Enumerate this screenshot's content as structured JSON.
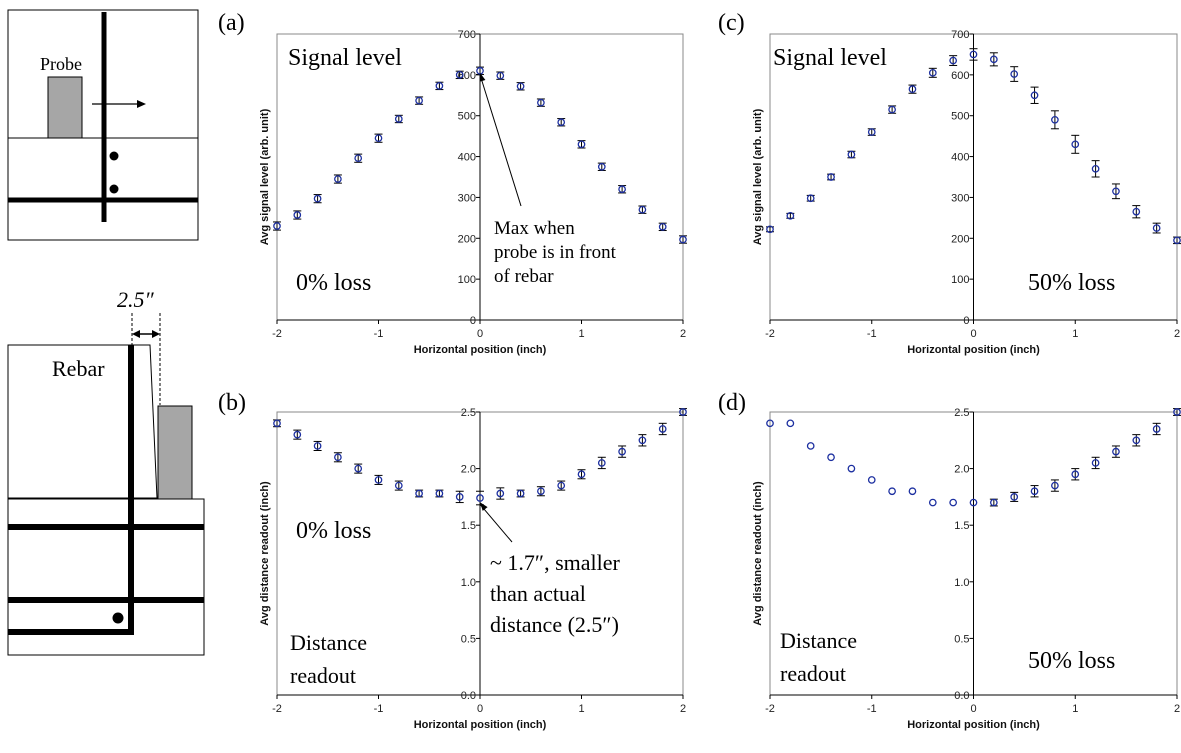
{
  "schematic": {
    "probe_label": "Probe",
    "rebar_label": "Rebar",
    "distance_label": "2.5″"
  },
  "colors": {
    "marker": "#1c2fa0",
    "errorbar": "#000000",
    "axis": "#000000",
    "probe_fill": "#a6a6a6"
  },
  "chart_data": [
    {
      "id": "a",
      "type": "scatter",
      "panel_label": "(a)",
      "xlabel": "Horizontal position (inch)",
      "ylabel": "Avg signal level (arb. unit)",
      "xlim": [
        -2,
        2
      ],
      "ylim": [
        0,
        700
      ],
      "xticks": [
        -2,
        -1,
        0,
        1,
        2
      ],
      "yticks": [
        0,
        100,
        200,
        300,
        400,
        500,
        600,
        700
      ],
      "grid": false,
      "texts": [
        "Signal level",
        "0% loss"
      ],
      "annotation": {
        "lines": [
          "Max when",
          "probe is in front",
          "of rebar"
        ],
        "points_to": [
          0,
          610
        ]
      },
      "x": [
        -2.0,
        -1.8,
        -1.6,
        -1.4,
        -1.2,
        -1.0,
        -0.8,
        -0.6,
        -0.4,
        -0.2,
        0.0,
        0.2,
        0.4,
        0.6,
        0.8,
        1.0,
        1.2,
        1.4,
        1.6,
        1.8,
        2.0
      ],
      "y": [
        230,
        257,
        297,
        345,
        396,
        445,
        492,
        537,
        573,
        600,
        610,
        598,
        572,
        532,
        484,
        430,
        375,
        320,
        270,
        228,
        197
      ],
      "yerr": [
        10,
        10,
        10,
        10,
        10,
        10,
        9,
        9,
        9,
        9,
        9,
        9,
        9,
        9,
        9,
        9,
        9,
        9,
        9,
        9,
        9
      ]
    },
    {
      "id": "b",
      "type": "scatter",
      "panel_label": "(b)",
      "xlabel": "Horizontal position (inch)",
      "ylabel": "Avg distance readout (inch)",
      "xlim": [
        -2,
        2
      ],
      "ylim": [
        0,
        2.5
      ],
      "xticks": [
        -2,
        -1,
        0,
        1,
        2
      ],
      "yticks": [
        "0.0",
        "0.5",
        "1.0",
        "1.5",
        "2.0",
        "2.5"
      ],
      "grid": false,
      "texts": [
        "0% loss",
        "Distance",
        "readout"
      ],
      "annotation": {
        "lines": [
          "~ 1.7″, smaller",
          "than actual",
          "distance (2.5″)"
        ],
        "points_to": [
          0,
          1.72
        ]
      },
      "x": [
        -2.0,
        -1.8,
        -1.6,
        -1.4,
        -1.2,
        -1.0,
        -0.8,
        -0.6,
        -0.4,
        -0.2,
        0.0,
        0.2,
        0.4,
        0.6,
        0.8,
        1.0,
        1.2,
        1.4,
        1.6,
        1.8,
        2.0
      ],
      "y": [
        2.4,
        2.3,
        2.2,
        2.1,
        2.0,
        1.9,
        1.85,
        1.78,
        1.78,
        1.75,
        1.74,
        1.78,
        1.78,
        1.8,
        1.85,
        1.95,
        2.05,
        2.15,
        2.25,
        2.35,
        2.5
      ],
      "yerr": [
        0.03,
        0.04,
        0.04,
        0.04,
        0.04,
        0.04,
        0.04,
        0.03,
        0.03,
        0.05,
        0.06,
        0.05,
        0.03,
        0.04,
        0.04,
        0.04,
        0.05,
        0.05,
        0.05,
        0.05,
        0.03
      ]
    },
    {
      "id": "c",
      "type": "scatter",
      "panel_label": "(c)",
      "xlabel": "Horizontal position (inch)",
      "ylabel": "Avg signal level (arb. unit)",
      "xlim": [
        -2,
        2
      ],
      "ylim": [
        0,
        700
      ],
      "xticks": [
        -2,
        -1,
        0,
        1,
        2
      ],
      "yticks": [
        0,
        100,
        200,
        300,
        400,
        500,
        600,
        700
      ],
      "grid": false,
      "texts": [
        "Signal level",
        "50% loss"
      ],
      "x": [
        -2.0,
        -1.8,
        -1.6,
        -1.4,
        -1.2,
        -1.0,
        -0.8,
        -0.6,
        -0.4,
        -0.2,
        0.0,
        0.2,
        0.4,
        0.6,
        0.8,
        1.0,
        1.2,
        1.4,
        1.6,
        1.8,
        2.0
      ],
      "y": [
        222,
        255,
        298,
        350,
        405,
        460,
        515,
        565,
        605,
        635,
        650,
        638,
        602,
        550,
        490,
        430,
        370,
        315,
        265,
        225,
        195
      ],
      "yerr": [
        6,
        6,
        7,
        7,
        8,
        8,
        9,
        10,
        11,
        12,
        14,
        16,
        18,
        20,
        22,
        22,
        20,
        18,
        15,
        12,
        8
      ]
    },
    {
      "id": "d",
      "type": "scatter",
      "panel_label": "(d)",
      "xlabel": "Horizontal position (inch)",
      "ylabel": "Avg distance readout (inch)",
      "xlim": [
        -2,
        2
      ],
      "ylim": [
        0,
        2.5
      ],
      "xticks": [
        -2,
        -1,
        0,
        1,
        2
      ],
      "yticks": [
        "0.0",
        "0.5",
        "1.0",
        "1.5",
        "2.0",
        "2.5"
      ],
      "grid": false,
      "texts": [
        "Distance",
        "readout",
        "50% loss"
      ],
      "x": [
        -2.0,
        -1.8,
        -1.6,
        -1.4,
        -1.2,
        -1.0,
        -0.8,
        -0.6,
        -0.4,
        -0.2,
        0.0,
        0.2,
        0.4,
        0.6,
        0.8,
        1.0,
        1.2,
        1.4,
        1.6,
        1.8,
        2.0
      ],
      "y": [
        2.4,
        2.4,
        2.2,
        2.1,
        2.0,
        1.9,
        1.8,
        1.8,
        1.7,
        1.7,
        1.7,
        1.7,
        1.75,
        1.8,
        1.85,
        1.95,
        2.05,
        2.15,
        2.25,
        2.35,
        2.5
      ],
      "yerr": [
        0.0,
        0.0,
        0.0,
        0.0,
        0.0,
        0.0,
        0.0,
        0.0,
        0.0,
        0.0,
        0.0,
        0.03,
        0.04,
        0.05,
        0.05,
        0.05,
        0.05,
        0.05,
        0.05,
        0.05,
        0.03
      ]
    }
  ]
}
